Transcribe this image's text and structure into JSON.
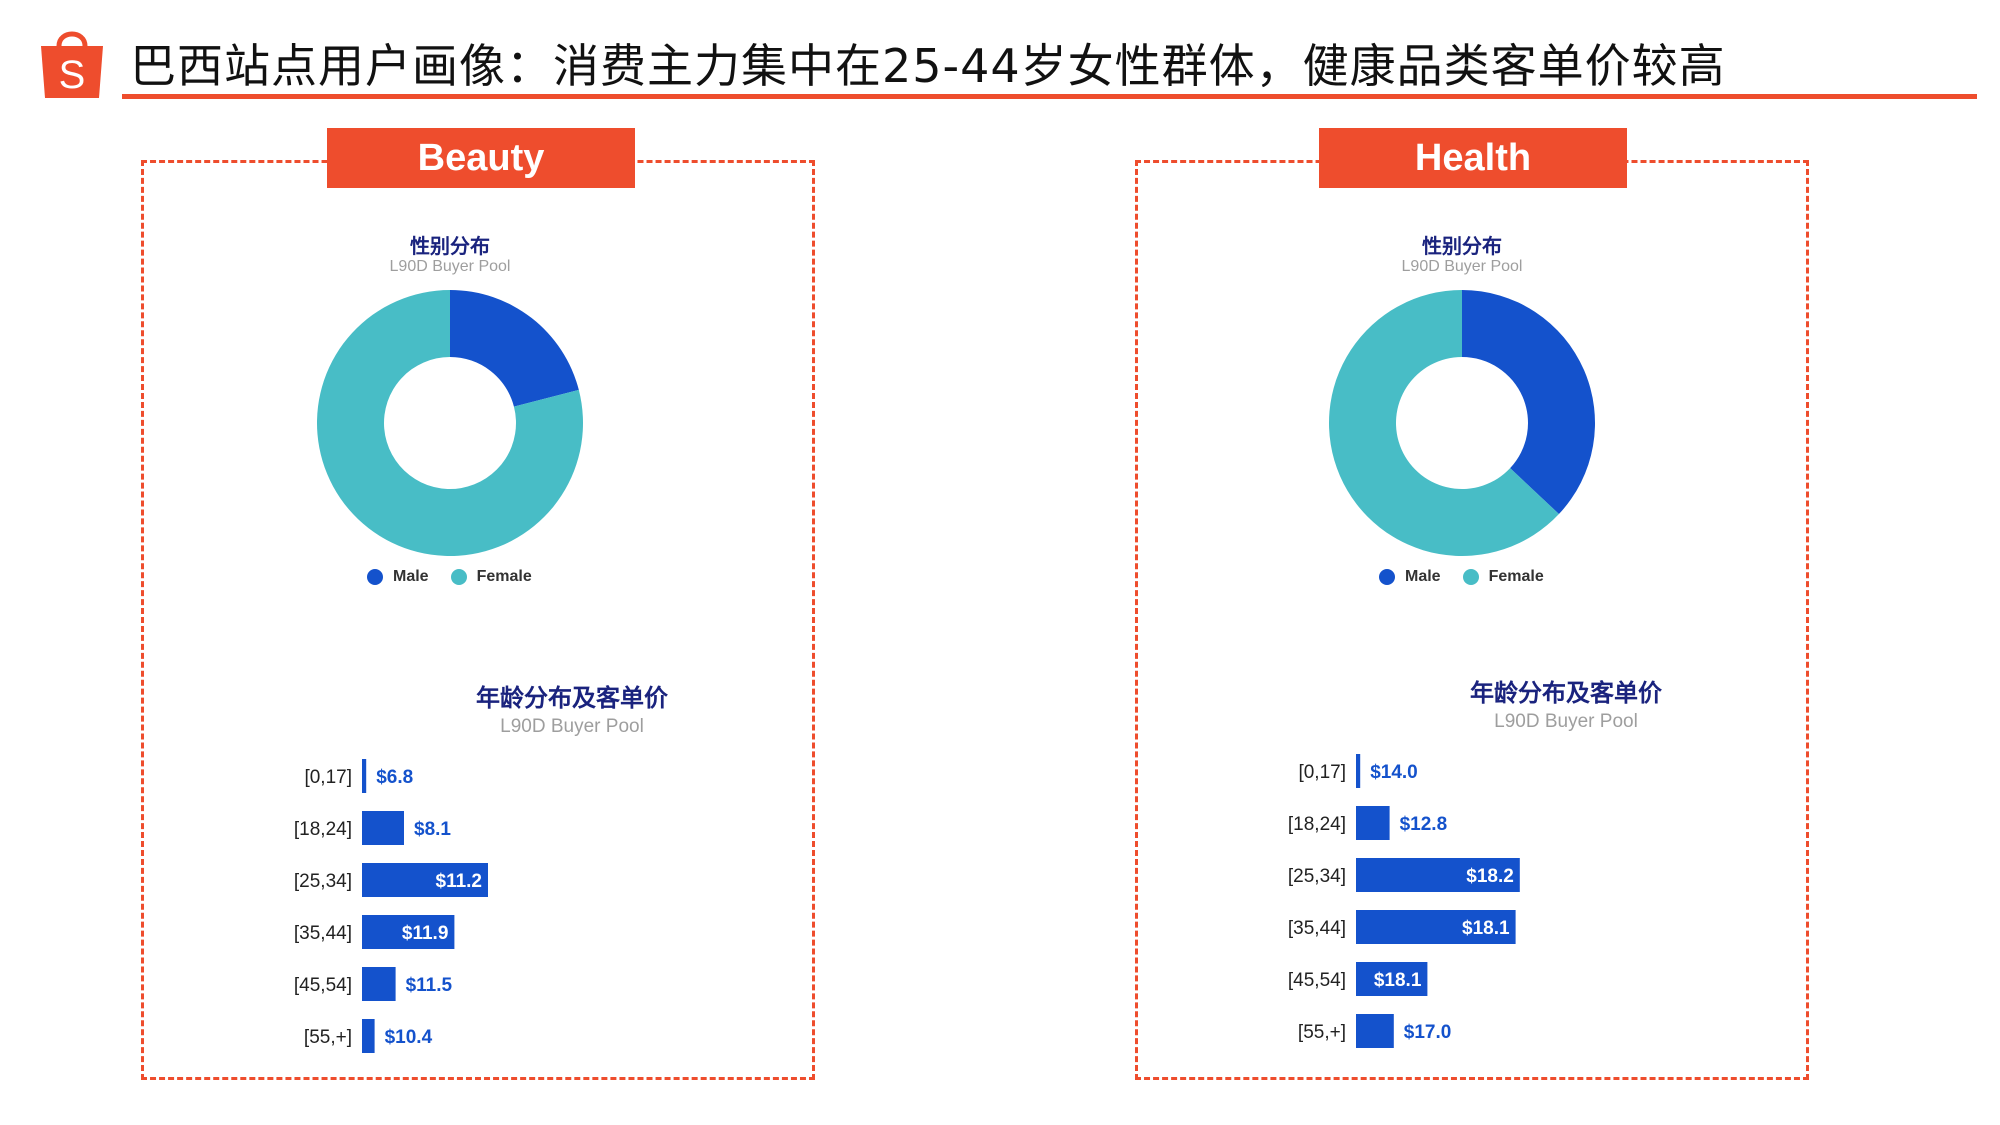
{
  "header": {
    "title": "巴西站点用户画像：消费主力集中在25-44岁女性群体，健康品类客单价较高",
    "logo_letter": "S"
  },
  "colors": {
    "accent": "#ee4d2d",
    "male": "#1452cc",
    "female": "#48bdc6",
    "bar": "#1452cc"
  },
  "panels": [
    {
      "tag": "Beauty",
      "donut": {
        "title": "性别分布",
        "subtitle": "L90D Buyer Pool"
      },
      "bars": {
        "title": "年龄分布及客单价",
        "subtitle": "L90D Buyer Pool"
      },
      "legend": {
        "male": "Male",
        "female": "Female"
      }
    },
    {
      "tag": "Health",
      "donut": {
        "title": "性别分布",
        "subtitle": "L90D Buyer Pool"
      },
      "bars": {
        "title": "年龄分布及客单价",
        "subtitle": "L90D Buyer Pool"
      },
      "legend": {
        "male": "Male",
        "female": "Female"
      }
    }
  ],
  "chart_data": [
    {
      "type": "pie",
      "title": "性别分布",
      "subtitle": "L90D Buyer Pool",
      "categories": [
        "Male",
        "Female"
      ],
      "values": [
        21,
        79
      ],
      "legend_position": "bottom"
    },
    {
      "type": "bar",
      "orientation": "horizontal",
      "title": "年龄分布及客单价",
      "subtitle": "L90D Buyer Pool",
      "categories": [
        "[0,17]",
        "[18,24]",
        "[25,34]",
        "[35,44]",
        "[45,54]",
        "[55,+]"
      ],
      "values": [
        1,
        10,
        30,
        22,
        8,
        3
      ],
      "data_labels": [
        "$6.8",
        "$8.1",
        "$11.2",
        "$11.9",
        "$11.5",
        "$10.4"
      ]
    },
    {
      "type": "pie",
      "title": "性别分布",
      "subtitle": "L90D Buyer Pool",
      "categories": [
        "Male",
        "Female"
      ],
      "values": [
        37,
        63
      ],
      "legend_position": "bottom"
    },
    {
      "type": "bar",
      "orientation": "horizontal",
      "title": "年龄分布及客单价",
      "subtitle": "L90D Buyer Pool",
      "categories": [
        "[0,17]",
        "[18,24]",
        "[25,34]",
        "[35,44]",
        "[45,54]",
        "[55,+]"
      ],
      "values": [
        1,
        8,
        39,
        38,
        17,
        9
      ],
      "data_labels": [
        "$14.0",
        "$12.8",
        "$18.2",
        "$18.1",
        "$18.1",
        "$17.0"
      ]
    }
  ]
}
